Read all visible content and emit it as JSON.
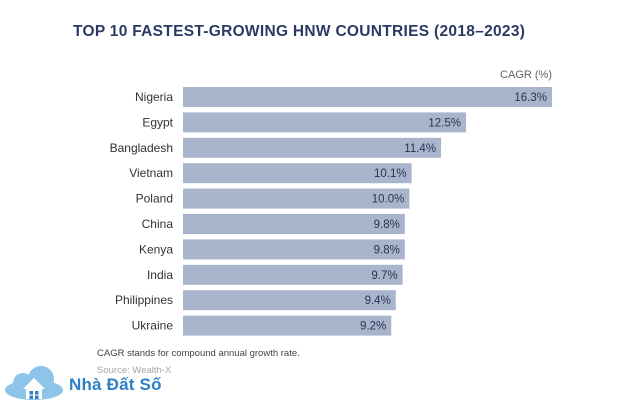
{
  "chart_data": {
    "type": "bar",
    "orientation": "horizontal",
    "title": "TOP 10 FASTEST-GROWING HNW COUNTRIES (2018–2023)",
    "value_axis_label": "CAGR (%)",
    "categories": [
      "Nigeria",
      "Egypt",
      "Bangladesh",
      "Vietnam",
      "Poland",
      "China",
      "Kenya",
      "India",
      "Philippines",
      "Ukraine"
    ],
    "values": [
      16.3,
      12.5,
      11.4,
      10.1,
      10.0,
      9.8,
      9.8,
      9.7,
      9.4,
      9.2
    ],
    "value_labels": [
      "16.3%",
      "12.5%",
      "11.4%",
      "10.1%",
      "10.0%",
      "9.8%",
      "9.8%",
      "9.7%",
      "9.4%",
      "9.2%"
    ],
    "xlim": [
      0,
      16.3
    ],
    "grid": false,
    "legend": "none",
    "bar_color": "#a9b5cd",
    "value_label_color": "#2b3450"
  },
  "footnote": "CAGR stands for compound annual growth rate.",
  "source": "Source: Wealth-X",
  "watermark": {
    "text": "Nhà Đất Số",
    "icon": "house-cloud-icon",
    "color": "#2f7fc6"
  }
}
